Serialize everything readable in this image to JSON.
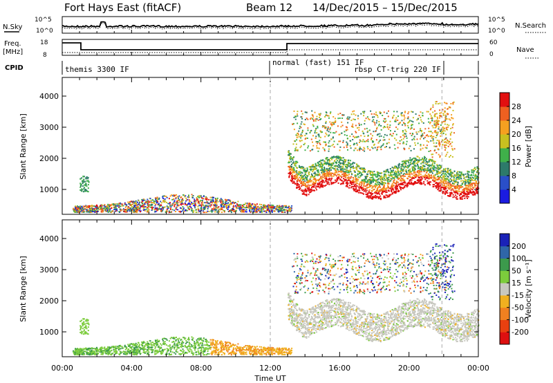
{
  "header": {
    "title": "Fort Hays East (fitACF)",
    "beam": "Beam 12",
    "dates": "14/Dec/2015 – 15/Dec/2015"
  },
  "labels": {
    "nsky": "N.Sky",
    "nsearch": "N.Search",
    "freq": "Freq.",
    "freq_unit": "[MHz]",
    "nave": "Nave",
    "cpid": "CPID",
    "power_label": "Power [dB]",
    "velocity_label": "Velocity [m s⁻¹]",
    "xlabel": "Time UT"
  },
  "noise_axis": {
    "left_ticks": [
      "10^5",
      "10^0"
    ],
    "right_ticks": [
      "10^5",
      "10^0"
    ]
  },
  "freq_axis": {
    "left_ticks": [
      "18",
      "8"
    ],
    "right_ticks": [
      "60",
      "0"
    ]
  },
  "cpid_segments": [
    {
      "label": "themis 3300 IF",
      "start_h": 0.0
    },
    {
      "label": "normal (fast) 151 IF",
      "start_h": 12.0
    },
    {
      "label": "rbsp CT-trig 220 IF",
      "start_h": 17.7
    }
  ],
  "chart_data": [
    {
      "type": "heatmap",
      "name": "power",
      "xlabel": "Time UT",
      "ylabel": "Slant Range [km]",
      "xlim_hours": [
        0,
        24
      ],
      "ylim_km": [
        200,
        4600
      ],
      "x_ticks": [
        "00:00",
        "04:00",
        "08:00",
        "12:00",
        "16:00",
        "20:00",
        "00:00"
      ],
      "y_ticks": [
        1000,
        2000,
        3000,
        4000
      ],
      "colorbar": {
        "label": "Power [dB]",
        "ticks": [
          4,
          8,
          12,
          16,
          20,
          24,
          28
        ],
        "range": [
          0,
          30
        ]
      },
      "colors": [
        "#1b1be0",
        "#2a4fc8",
        "#2d7a6a",
        "#3fb04a",
        "#c8c020",
        "#f5a020",
        "#ee6020",
        "#e21010"
      ]
    },
    {
      "type": "heatmap",
      "name": "velocity",
      "xlabel": "Time UT",
      "ylabel": "Slant Range [km]",
      "xlim_hours": [
        0,
        24
      ],
      "ylim_km": [
        200,
        4600
      ],
      "x_ticks": [
        "00:00",
        "04:00",
        "08:00",
        "12:00",
        "16:00",
        "20:00",
        "00:00"
      ],
      "y_ticks": [
        1000,
        2000,
        3000,
        4000
      ],
      "colorbar": {
        "label": "Velocity [m s⁻¹]",
        "ticks": [
          "200",
          "100",
          "50",
          "15",
          "-15",
          "-50",
          "-100",
          "-200"
        ]
      },
      "colors": [
        "#1a22b8",
        "#2f66a8",
        "#3c9a4c",
        "#7ccc3c",
        "#c8c8c0",
        "#f0b020",
        "#f08020",
        "#e84010",
        "#dd1010"
      ]
    }
  ]
}
